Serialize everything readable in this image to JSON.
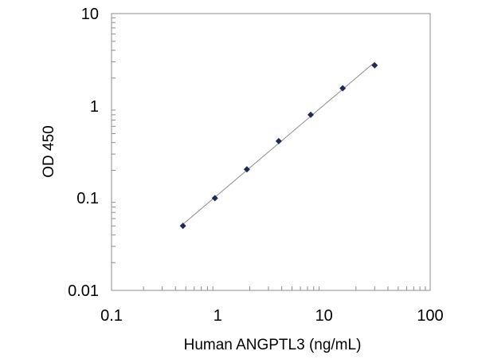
{
  "chart_data": {
    "type": "scatter",
    "title": "",
    "xlabel": "Human ANGPTL3  (ng/mL)",
    "ylabel": "OD 450",
    "x_scale": "log",
    "y_scale": "log",
    "xlim": [
      0.1,
      100
    ],
    "ylim": [
      0.01,
      10
    ],
    "x_tick_labels": [
      "0.1",
      "1",
      "10",
      "100"
    ],
    "y_tick_labels": [
      "0.01",
      "0.1",
      "1",
      "10"
    ],
    "grid": false,
    "legend": "none",
    "marker": "diamond",
    "marker_color": "#1f2a55",
    "line_color": "#8c8c8c",
    "points": [
      {
        "x": 0.47,
        "y": 0.05
      },
      {
        "x": 0.94,
        "y": 0.1
      },
      {
        "x": 1.88,
        "y": 0.205
      },
      {
        "x": 3.75,
        "y": 0.415
      },
      {
        "x": 7.5,
        "y": 0.8
      },
      {
        "x": 15,
        "y": 1.55
      },
      {
        "x": 30,
        "y": 2.75
      }
    ]
  }
}
